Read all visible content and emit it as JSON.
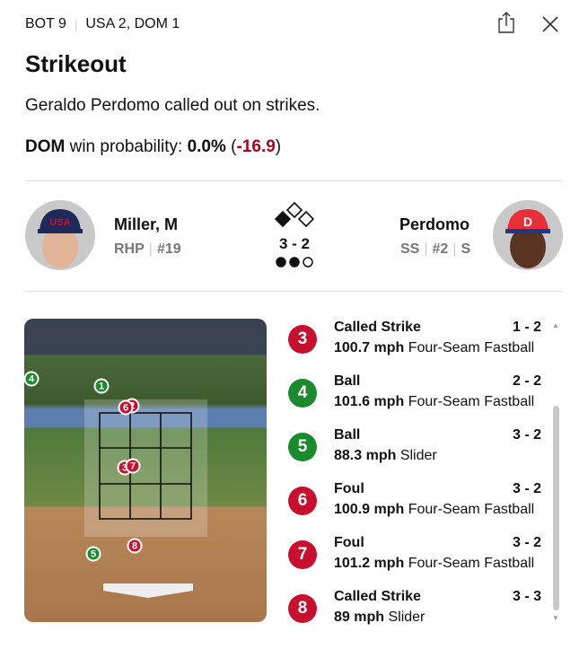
{
  "header": {
    "inning": "BOT 9",
    "score": "USA 2, DOM 1",
    "share_icon": "share-icon",
    "close_icon": "close-icon"
  },
  "play": {
    "title": "Strikeout",
    "description": "Geraldo Perdomo called out on strikes.",
    "team": "DOM",
    "wp_label": "win probability:",
    "wp_value": "0.0%",
    "wp_open": "(",
    "wp_change": "-16.9",
    "wp_close": ")"
  },
  "pitcher": {
    "name": "Miller, M",
    "position": "RHP",
    "number": "#19"
  },
  "batter": {
    "name": "Perdomo",
    "position": "SS",
    "number": "#2",
    "bats": "S"
  },
  "situation": {
    "count": "3 - 2",
    "bases": {
      "first": true,
      "second": false,
      "third": false
    },
    "outs": 2,
    "outs_max": 3
  },
  "colors": {
    "strike": "#c8102e",
    "ball": "#1a8a2e",
    "negative": "#b5001c"
  },
  "pitches": [
    {
      "n": "3",
      "result": "Called Strike",
      "count": "1 - 2",
      "speed": "100.7 mph",
      "type": "Four-Seam Fastball",
      "kind": "strike"
    },
    {
      "n": "4",
      "result": "Ball",
      "count": "2 - 2",
      "speed": "101.6 mph",
      "type": "Four-Seam Fastball",
      "kind": "ball"
    },
    {
      "n": "5",
      "result": "Ball",
      "count": "3 - 2",
      "speed": "88.3 mph",
      "type": "Slider",
      "kind": "ball"
    },
    {
      "n": "6",
      "result": "Foul",
      "count": "3 - 2",
      "speed": "100.9 mph",
      "type": "Four-Seam Fastball",
      "kind": "strike"
    },
    {
      "n": "7",
      "result": "Foul",
      "count": "3 - 2",
      "speed": "101.2 mph",
      "type": "Four-Seam Fastball",
      "kind": "strike"
    },
    {
      "n": "8",
      "result": "Called Strike",
      "count": "3 - 3",
      "speed": "89 mph",
      "type": "Slider",
      "kind": "strike"
    }
  ],
  "zone_markers": [
    {
      "n": "4",
      "kind": "ball"
    },
    {
      "n": "1",
      "kind": "ball"
    },
    {
      "n": "2",
      "kind": "strike"
    },
    {
      "n": "6",
      "kind": "strike"
    },
    {
      "n": "3",
      "kind": "strike"
    },
    {
      "n": "7",
      "kind": "strike"
    },
    {
      "n": "8",
      "kind": "strike"
    },
    {
      "n": "5",
      "kind": "ball"
    }
  ]
}
